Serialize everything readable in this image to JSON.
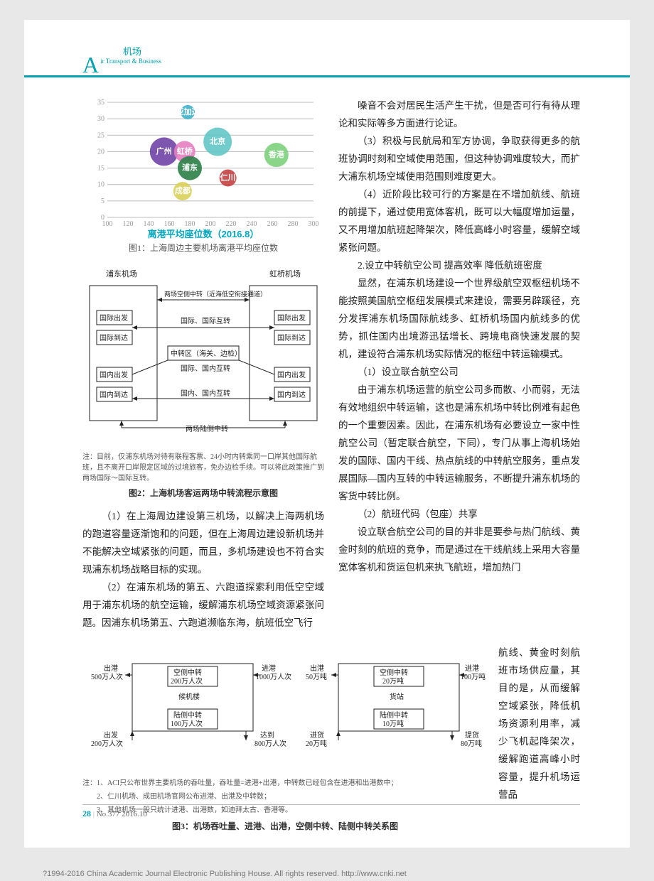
{
  "header": {
    "letter": "A",
    "labelCn": "机场",
    "labelEn": "ir Transport & Business"
  },
  "chart": {
    "type": "bubble",
    "xlim": [
      100,
      300
    ],
    "ylim": [
      0,
      35
    ],
    "xticks": [
      100,
      120,
      140,
      160,
      180,
      200,
      220,
      240,
      260,
      280,
      300
    ],
    "yticks": [
      0,
      5,
      10,
      15,
      20,
      25,
      30,
      35
    ],
    "grid_color": "#cccccc",
    "background_color": "#ffffff",
    "bubbles": [
      {
        "label": "亚加达",
        "x": 178,
        "y": 32,
        "r": 10,
        "color": "#3fb3c9"
      },
      {
        "label": "北京",
        "x": 207,
        "y": 23,
        "r": 20,
        "color": "#63c7c7"
      },
      {
        "label": "广州",
        "x": 155,
        "y": 20,
        "r": 20,
        "color": "#7144a6"
      },
      {
        "label": "虹桥",
        "x": 175,
        "y": 20,
        "r": 15,
        "color": "#e77ec1"
      },
      {
        "label": "香港",
        "x": 264,
        "y": 19,
        "r": 17,
        "color": "#7cd17c"
      },
      {
        "label": "浦东",
        "x": 180,
        "y": 15,
        "r": 17,
        "color": "#2a7f47"
      },
      {
        "label": "仁川",
        "x": 217,
        "y": 12,
        "r": 12,
        "color": "#c44040"
      },
      {
        "label": "成都",
        "x": 173,
        "y": 8,
        "r": 13,
        "color": "#d9d05a"
      }
    ],
    "axis_label": "离港平均座位数（2016.8）",
    "axis_label_color": "#00a6bd",
    "caption": "图1：上海周边主要机场离港平均座位数"
  },
  "flow1": {
    "pudong": "浦东机场",
    "hongqiao": "虹桥机场",
    "boxes": {
      "intl_dep_l": "国际出发",
      "intl_arr_l": "国际到达",
      "dom_dep_l": "国内出发",
      "dom_arr_l": "国内到达",
      "intl_dep_r": "国际出发",
      "intl_arr_r": "国际到达",
      "dom_dep_r": "国内出发",
      "dom_arr_r": "国内到达",
      "center": "中转区（海关、边检）"
    },
    "arrows": {
      "top_air": "两场空侧中转（近海低空衔接通道）",
      "intl_intl": "国际、国际互转",
      "intl_dom": "国际、国内互转",
      "dom_dom": "国内、国内互转",
      "bottom_land": "两场陆侧中转"
    },
    "footnote": "注：目前，仅浦东机场对待有联程客票、24小时内转乘同一口岸其他国际航班，且不离开口岸限定区域的过境旅客，免办边检手续。可以将此政策推广到两场国际～国际互转。",
    "caption": "图2：上海机场客运两场中转流程示意图"
  },
  "leftText": {
    "p1": "（1）在上海周边建设第三机场，以解决上海两机场的跑道容量逐渐饱和的问题，但在上海周边建设新机场并不能解决空域紧张的问题，而且，多机场建设也不符合实现浦东机场战略目标的实现。",
    "p2": "（2）在浦东机场的第五、六跑道探索利用低空空域用于浦东机场的航空运输，缓解浦东机场空域资源紧张问题。因浦东机场第五、六跑道濒临东海，航班低空飞行"
  },
  "rightText": {
    "p1": "噪音不会对居民生活产生干扰，但是否可行有待从理论和实际等多方面进行论证。",
    "p2": "（3）积极与民航局和军方协调，争取获得更多的航班协调时刻和空域使用范围，但这种协调难度较大，而扩大浦东机场空域使用范围则难度更大。",
    "p3": "（4）近阶段比较可行的方案是在不增加航线、航班的前提下，通过使用宽体客机，既可以大幅度增加运量，又不用增加航班起降架次，降低高峰小时容量，缓解空域紧张问题。",
    "h1": "2.设立中转航空公司  提高效率  降低航班密度",
    "p4": "显然，在浦东机场建设一个世界级航空双枢纽机场不能按照美国航空枢纽发展模式来建设，需要另辟蹊径，充分发挥浦东机场国际航线多、虹桥机场国内航线多的优势，抓住国内出境游迅猛增长、跨境电商快速发展的契机，建设符合浦东机场实际情况的枢纽中转运输模式。",
    "h2": "（1）设立联合航空公司",
    "p5": "由于浦东机场运营的航空公司多而散、小而弱，无法有效地组织中转运输，这也是浦东机场中转比例难有起色的一个重要因素。因此，在浦东机场有必要设立一家中性航空公司（暂定联合航空，下同），专门从事上海机场始发的国际、国内干线、热点航线的中转航空服务，重点发展国际—国内互转的中转运输服务，不断提升浦东机场的客货中转比例。",
    "h3": "（2）航班代码（包座）共享",
    "p6": "设立联合航空公司的目的并非是要参与热门航线、黄金时刻的航班的竞争，而是通过在干线航线上采用大容量宽体客机和货运包机来执飞航班，增加热门"
  },
  "narrowText": {
    "p": "航线、黄金时刻航班市场供应量，其目的是，从而缓解空域紧张，降低机场资源利用率，减少飞机起降架次，缓解跑道高峰小时容量，提升机场运营品"
  },
  "flow2": {
    "leftBlock": {
      "title": "候机楼",
      "out_dep": "出港",
      "out_dep_v": "500万人次",
      "in_arr": "进港",
      "in_arr_v": "1000万人次",
      "air_tr": "空侧中转",
      "air_tr_v": "200万人次",
      "dep": "出发",
      "dep_v": "200万人次",
      "land_tr": "陆侧中转",
      "land_tr_v": "100万人次",
      "arr": "达到",
      "arr_v": "800万人次"
    },
    "rightBlock": {
      "title": "货站",
      "out_dep": "出港",
      "out_dep_v": "50万吨",
      "in_arr": "进港",
      "in_arr_v": "100万吨",
      "air_tr": "空侧中转",
      "air_tr_v": "20万吨",
      "dep": "进货",
      "dep_v": "20万吨",
      "land_tr": "陆侧中转",
      "land_tr_v": "10万吨",
      "arr": "提货",
      "arr_v": "80万吨"
    },
    "footnote1": "注：1、ACI只公布世界主要机场的吞吐量，吞吐量=进港+出港，中转数已经包含在进港和出港数中；",
    "footnote2": "　　2、仁川机场、成田机场官网公布进港、出港及中转数；",
    "footnote3": "　　3、其他机场一般只统计进港、出港数，如迪拜太古、香港等。",
    "caption": "图3：机场吞吐量、进港、出港，空侧中转、陆侧中转关系图"
  },
  "footer": {
    "pageNo": "28",
    "issue": "No.377  2016.10"
  },
  "cnki": {
    "text": "?1994-2016 China Academic Journal Electronic Publishing House. All rights reserved.   http://www.cnki.net"
  }
}
